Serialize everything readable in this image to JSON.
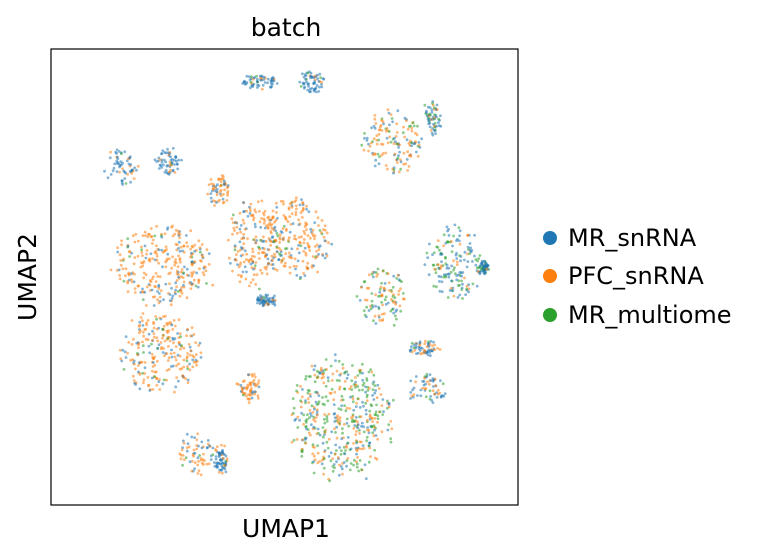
{
  "chart_data": {
    "type": "scatter",
    "title": "batch",
    "xlabel": "UMAP1",
    "ylabel": "UMAP2",
    "ticks": "none",
    "grid": false,
    "legend_placement": "right",
    "series": [
      {
        "name": "MR_snRNA",
        "color": "#1f77b4"
      },
      {
        "name": "PFC_snRNA",
        "color": "#ff7f0e"
      },
      {
        "name": "MR_multiome",
        "color": "#2ca02c"
      }
    ],
    "clusters": [
      {
        "cx": 3.5,
        "cy": 3.2,
        "rx": 2.4,
        "ry": 2.2,
        "weights": [
          0.25,
          0.7,
          0.05
        ]
      },
      {
        "cx": 3.4,
        "cy": -1.6,
        "rx": 2.0,
        "ry": 2.2,
        "weights": [
          0.25,
          0.7,
          0.05
        ]
      },
      {
        "cx": 5.2,
        "cy": -7.2,
        "rx": 1.0,
        "ry": 1.2,
        "weights": [
          0.35,
          0.6,
          0.05
        ]
      },
      {
        "cx": 8.0,
        "cy": 4.3,
        "rx": 1.3,
        "ry": 2.4,
        "weights": [
          0.25,
          0.7,
          0.05
        ]
      },
      {
        "cx": 10.0,
        "cy": 4.6,
        "rx": 1.8,
        "ry": 2.2,
        "weights": [
          0.22,
          0.7,
          0.08
        ]
      },
      {
        "cx": 12.3,
        "cy": -5.3,
        "rx": 2.5,
        "ry": 3.3,
        "weights": [
          0.25,
          0.35,
          0.4
        ]
      },
      {
        "cx": 14.8,
        "cy": 9.9,
        "rx": 1.5,
        "ry": 1.7,
        "weights": [
          0.25,
          0.6,
          0.15
        ]
      },
      {
        "cx": 14.3,
        "cy": 1.5,
        "rx": 1.2,
        "ry": 1.6,
        "weights": [
          0.2,
          0.45,
          0.35
        ]
      },
      {
        "cx": 17.8,
        "cy": 3.2,
        "rx": 1.4,
        "ry": 2.0,
        "weights": [
          0.5,
          0.15,
          0.35
        ]
      },
      {
        "cx": 6.3,
        "cy": 7.2,
        "rx": 0.6,
        "ry": 0.8,
        "weights": [
          0.3,
          0.65,
          0.05
        ]
      },
      {
        "cx": 1.5,
        "cy": 8.5,
        "rx": 0.8,
        "ry": 1.0,
        "weights": [
          0.75,
          0.2,
          0.05
        ]
      },
      {
        "cx": 3.8,
        "cy": 8.8,
        "rx": 0.6,
        "ry": 0.8,
        "weights": [
          0.8,
          0.15,
          0.05
        ]
      },
      {
        "cx": 8.2,
        "cy": 13.2,
        "rx": 0.9,
        "ry": 0.4,
        "weights": [
          0.9,
          0.05,
          0.05
        ]
      },
      {
        "cx": 10.8,
        "cy": 13.2,
        "rx": 0.6,
        "ry": 0.6,
        "weights": [
          0.9,
          0.05,
          0.05
        ]
      },
      {
        "cx": 16.8,
        "cy": 11.2,
        "rx": 0.4,
        "ry": 0.9,
        "weights": [
          0.5,
          0.1,
          0.4
        ]
      },
      {
        "cx": 16.4,
        "cy": -1.4,
        "rx": 0.8,
        "ry": 0.4,
        "weights": [
          0.7,
          0.25,
          0.05
        ]
      },
      {
        "cx": 16.6,
        "cy": -3.6,
        "rx": 1.0,
        "ry": 0.8,
        "weights": [
          0.6,
          0.3,
          0.1
        ]
      },
      {
        "cx": 19.3,
        "cy": 3.0,
        "rx": 0.2,
        "ry": 0.4,
        "weights": [
          0.85,
          0.05,
          0.1
        ]
      },
      {
        "cx": 8.6,
        "cy": 1.2,
        "rx": 0.5,
        "ry": 0.3,
        "weights": [
          0.8,
          0.15,
          0.05
        ]
      },
      {
        "cx": 6.4,
        "cy": -7.6,
        "rx": 0.3,
        "ry": 0.8,
        "weights": [
          0.8,
          0.15,
          0.05
        ]
      },
      {
        "cx": 7.8,
        "cy": -3.6,
        "rx": 0.6,
        "ry": 0.8,
        "weights": [
          0.3,
          0.65,
          0.05
        ]
      }
    ]
  }
}
